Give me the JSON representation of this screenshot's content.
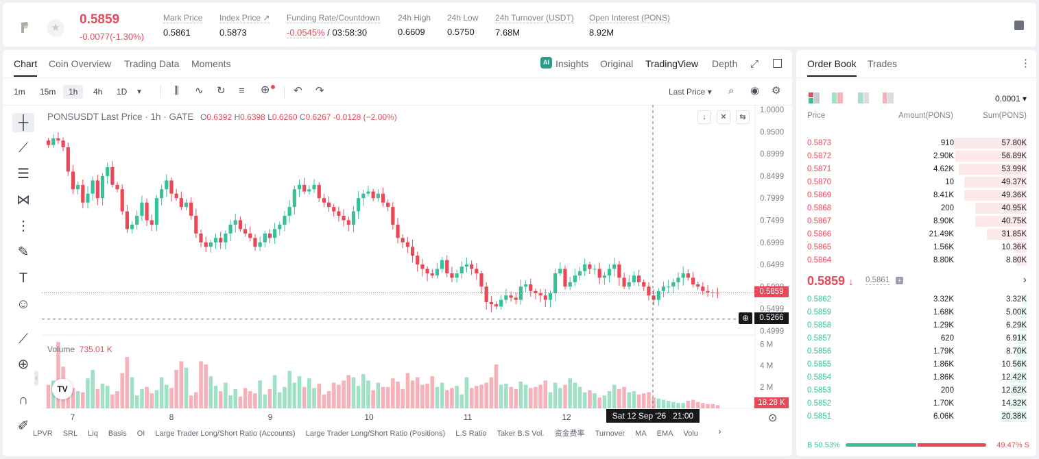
{
  "header": {
    "price": "0.5859",
    "change": "-0.0077(-1.30%)",
    "mark_label": "Mark Price",
    "mark_value": "0.5861",
    "index_label": "Index Price ↗",
    "index_value": "0.5873",
    "funding_label": "Funding Rate/Countdown",
    "funding_value": "-0.0545%",
    "countdown": "/ 03:58:30",
    "high_label": "24h High",
    "high_value": "0.6609",
    "low_label": "24h Low",
    "low_value": "0.5750",
    "turnover_label": "24h Turnover (USDT)",
    "turnover_value": "7.68M",
    "oi_label": "Open Interest (PONS)",
    "oi_value": "8.92M"
  },
  "chart_tabs": [
    "Chart",
    "Coin Overview",
    "Trading Data",
    "Moments"
  ],
  "chart_views": {
    "insights": "Insights",
    "original": "Original",
    "tradingview": "TradingView",
    "depth": "Depth"
  },
  "intervals": [
    "1m",
    "15m",
    "1h",
    "4h",
    "1D"
  ],
  "last_price_select": "Last Price",
  "legend": {
    "symbol": "PONSUSDT Last Price · 1h · GATE",
    "o_label": "O",
    "o": "0.6392",
    "h_label": "H",
    "h": "0.6398",
    "l_label": "L",
    "l": "0.6260",
    "c_label": "C",
    "c": "0.6267",
    "chg": "-0.0128 (−2.00%)"
  },
  "volume": {
    "label": "Volume",
    "value": "735.01 K",
    "tag": "18.28 K"
  },
  "price_tags": {
    "last": "0.5859",
    "cross": "0.5266"
  },
  "crosshair_time": "Sat 12 Sep '26   21:00",
  "indicators": [
    "LPVR",
    "SRL",
    "Liq",
    "Basis",
    "OI",
    "Large Trader Long/Short Ratio (Accounts)",
    "Large Trader Long/Short Ratio (Positions)",
    "L.S Ratio",
    "Taker B.S Vol.",
    "资金费率",
    "Turnover",
    "MA",
    "EMA",
    "Volu"
  ],
  "chart_data": {
    "type": "candlestick",
    "title": "PONSUSDT Last Price · 1h · GATE",
    "y_ticks": [
      "1.0000",
      "0.9500",
      "0.8999",
      "0.8499",
      "0.7999",
      "0.7499",
      "0.6999",
      "0.6499",
      "0.5999",
      "0.5499",
      "0.4999"
    ],
    "vol_ticks": [
      "6 M",
      "4 M",
      "2 M"
    ],
    "x_ticks": [
      "7",
      "8",
      "9",
      "10",
      "11",
      "12"
    ],
    "ylim": [
      0.4999,
      1.0
    ],
    "closes": [
      0.92,
      0.935,
      0.93,
      0.915,
      0.86,
      0.82,
      0.83,
      0.79,
      0.81,
      0.84,
      0.8,
      0.85,
      0.87,
      0.83,
      0.82,
      0.77,
      0.73,
      0.74,
      0.76,
      0.79,
      0.75,
      0.74,
      0.8,
      0.82,
      0.84,
      0.81,
      0.8,
      0.78,
      0.79,
      0.76,
      0.72,
      0.7,
      0.69,
      0.7,
      0.71,
      0.7,
      0.72,
      0.74,
      0.75,
      0.73,
      0.72,
      0.71,
      0.69,
      0.7,
      0.72,
      0.71,
      0.73,
      0.74,
      0.76,
      0.78,
      0.82,
      0.83,
      0.815,
      0.82,
      0.83,
      0.8,
      0.79,
      0.78,
      0.77,
      0.76,
      0.75,
      0.74,
      0.77,
      0.8,
      0.81,
      0.815,
      0.8,
      0.81,
      0.79,
      0.78,
      0.74,
      0.71,
      0.7,
      0.69,
      0.67,
      0.65,
      0.64,
      0.63,
      0.625,
      0.64,
      0.66,
      0.63,
      0.62,
      0.63,
      0.645,
      0.65,
      0.64,
      0.63,
      0.6,
      0.565,
      0.56,
      0.555,
      0.57,
      0.58,
      0.575,
      0.57,
      0.6,
      0.605,
      0.59,
      0.585,
      0.58,
      0.57,
      0.585,
      0.63,
      0.64,
      0.6,
      0.61,
      0.625,
      0.635,
      0.65,
      0.64,
      0.64,
      0.62,
      0.625,
      0.64,
      0.65,
      0.62,
      0.6,
      0.61,
      0.625,
      0.61,
      0.6,
      0.58,
      0.57,
      0.59,
      0.6,
      0.6,
      0.61,
      0.62,
      0.63,
      0.62,
      0.605,
      0.6,
      0.59,
      0.587,
      0.586,
      0.5859
    ],
    "volumes": [
      2.2,
      2.6,
      6.2,
      3.9,
      2.3,
      1.9,
      1.6,
      1.5,
      2.8,
      3.6,
      1.8,
      2.3,
      2.1,
      1.3,
      1.6,
      3.3,
      4.8,
      2.9,
      1.2,
      1.8,
      2.0,
      1.4,
      1.7,
      2.9,
      2.2,
      1.9,
      3.6,
      4.4,
      3.8,
      1.2,
      1.5,
      4.4,
      4.1,
      3.0,
      2.1,
      1.6,
      2.4,
      1.2,
      1.8,
      1.1,
      1.9,
      1.6,
      1.4,
      2.6,
      1.3,
      1.8,
      3.1,
      1.5,
      2.0,
      3.5,
      2.4,
      3.0,
      2.0,
      2.8,
      1.9,
      2.3,
      1.3,
      1.6,
      2.4,
      2.2,
      2.6,
      3.1,
      2.9,
      2.1,
      3.2,
      2.6,
      1.7,
      2.4,
      2.0,
      2.0,
      2.8,
      2.5,
      1.8,
      3.3,
      2.6,
      2.9,
      2.2,
      2.3,
      3.0,
      2.0,
      2.4,
      1.7,
      1.9,
      2.1,
      1.3,
      2.9,
      1.9,
      2.1,
      2.2,
      2.4,
      2.9,
      4.1,
      2.2,
      2.3,
      2.0,
      1.8,
      2.5,
      2.2,
      1.9,
      2.0,
      2.2,
      2.6,
      1.5,
      2.4,
      1.9,
      2.2,
      2.8,
      2.4,
      2.0,
      1.5,
      1.7,
      1.4,
      1.0,
      1.2,
      1.6,
      2.2,
      1.8,
      2.0,
      1.5,
      1.6,
      1.3,
      1.4,
      1.5,
      1.0,
      0.9,
      0.8,
      0.7,
      0.6,
      0.5,
      0.5,
      0.7,
      0.8,
      0.6,
      0.5,
      0.4,
      0.4,
      0.3
    ]
  },
  "orderbook": {
    "tabs": [
      "Order Book",
      "Trades"
    ],
    "precision": "0.0001",
    "cols": [
      "Price",
      "Amount(PONS)",
      "Sum(PONS)"
    ],
    "asks": [
      [
        "0.5873",
        "910",
        "57.80K",
        57.8
      ],
      [
        "0.5872",
        "2.90K",
        "56.89K",
        56.89
      ],
      [
        "0.5871",
        "4.62K",
        "53.99K",
        53.99
      ],
      [
        "0.5870",
        "10",
        "49.37K",
        49.37
      ],
      [
        "0.5869",
        "8.41K",
        "49.36K",
        49.36
      ],
      [
        "0.5868",
        "200",
        "40.95K",
        40.95
      ],
      [
        "0.5867",
        "8.90K",
        "40.75K",
        40.75
      ],
      [
        "0.5866",
        "21.49K",
        "31.85K",
        31.85
      ],
      [
        "0.5865",
        "1.56K",
        "10.36K",
        10.36
      ],
      [
        "0.5864",
        "8.80K",
        "8.80K",
        8.8
      ]
    ],
    "mid_price": "0.5859",
    "mid_mark": "0.5861",
    "bids": [
      [
        "0.5862",
        "3.32K",
        "3.32K",
        3.32
      ],
      [
        "0.5859",
        "1.68K",
        "5.00K",
        5.0
      ],
      [
        "0.5858",
        "1.29K",
        "6.29K",
        6.29
      ],
      [
        "0.5857",
        "620",
        "6.91K",
        6.91
      ],
      [
        "0.5856",
        "1.79K",
        "8.70K",
        8.7
      ],
      [
        "0.5855",
        "1.86K",
        "10.56K",
        10.56
      ],
      [
        "0.5854",
        "1.86K",
        "12.42K",
        12.42
      ],
      [
        "0.5853",
        "200",
        "12.62K",
        12.62
      ],
      [
        "0.5852",
        "1.70K",
        "14.32K",
        14.32
      ],
      [
        "0.5851",
        "6.06K",
        "20.38K",
        20.38
      ]
    ],
    "buy_ratio": "B 50.53%",
    "sell_ratio": "49.47% S",
    "buy_fraction": 0.5053
  },
  "colors": {
    "up": "#38c09a",
    "down": "#e84858",
    "up_bg": "#e6f7ef",
    "down_bg": "#fde8ea"
  }
}
